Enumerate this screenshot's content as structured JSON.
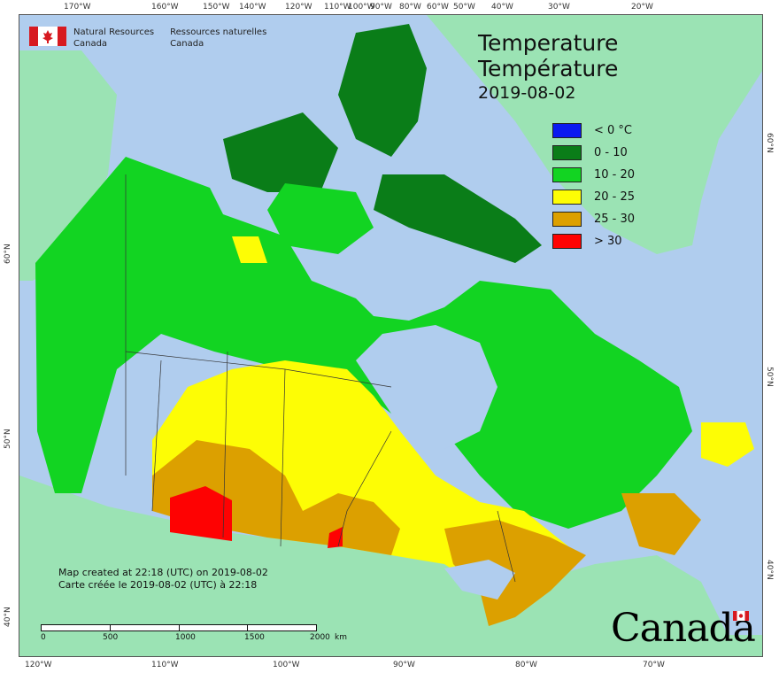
{
  "header": {
    "agency_en_line1": "Natural Resources",
    "agency_en_line2": "Canada",
    "agency_fr_line1": "Ressources naturelles",
    "agency_fr_line2": "Canada"
  },
  "title": {
    "en": "Temperature",
    "fr": "Température",
    "date": "2019-08-02"
  },
  "legend": [
    {
      "label": "< 0 °C",
      "color": "#0a1af0"
    },
    {
      "label": "0 - 10",
      "color": "#0a7d18"
    },
    {
      "label": "10 - 20",
      "color": "#12d422"
    },
    {
      "label": "20 - 25",
      "color": "#fdfd05"
    },
    {
      "label": "25 - 30",
      "color": "#dca000"
    },
    {
      "label": "> 30",
      "color": "#fe0202"
    }
  ],
  "graticule": {
    "top": [
      "170°W",
      "160°W",
      "150°W",
      "140°W",
      "120°W",
      "110°W",
      "100°W",
      "90°W",
      "80°W",
      "60°W",
      "50°W",
      "40°W",
      "30°W",
      "20°W"
    ],
    "bottom": [
      "120°W",
      "110°W",
      "100°W",
      "90°W",
      "80°W",
      "70°W"
    ],
    "left": [
      "60°N",
      "50°N",
      "40°N"
    ],
    "right": [
      "60°N",
      "50°N",
      "40°N"
    ]
  },
  "credit": {
    "en": "Map created at 22:18 (UTC) on 2019-08-02",
    "fr": "Carte créée le 2019-08-02 (UTC) à 22:18"
  },
  "scale_bar": {
    "labels": [
      "0",
      "500",
      "1000",
      "1500",
      "2000"
    ],
    "unit": "km"
  },
  "wordmark": "Canada",
  "colors": {
    "ocean": "#b0cdee",
    "land_outside": "#9be3b4",
    "lake": "#b0cdee"
  }
}
